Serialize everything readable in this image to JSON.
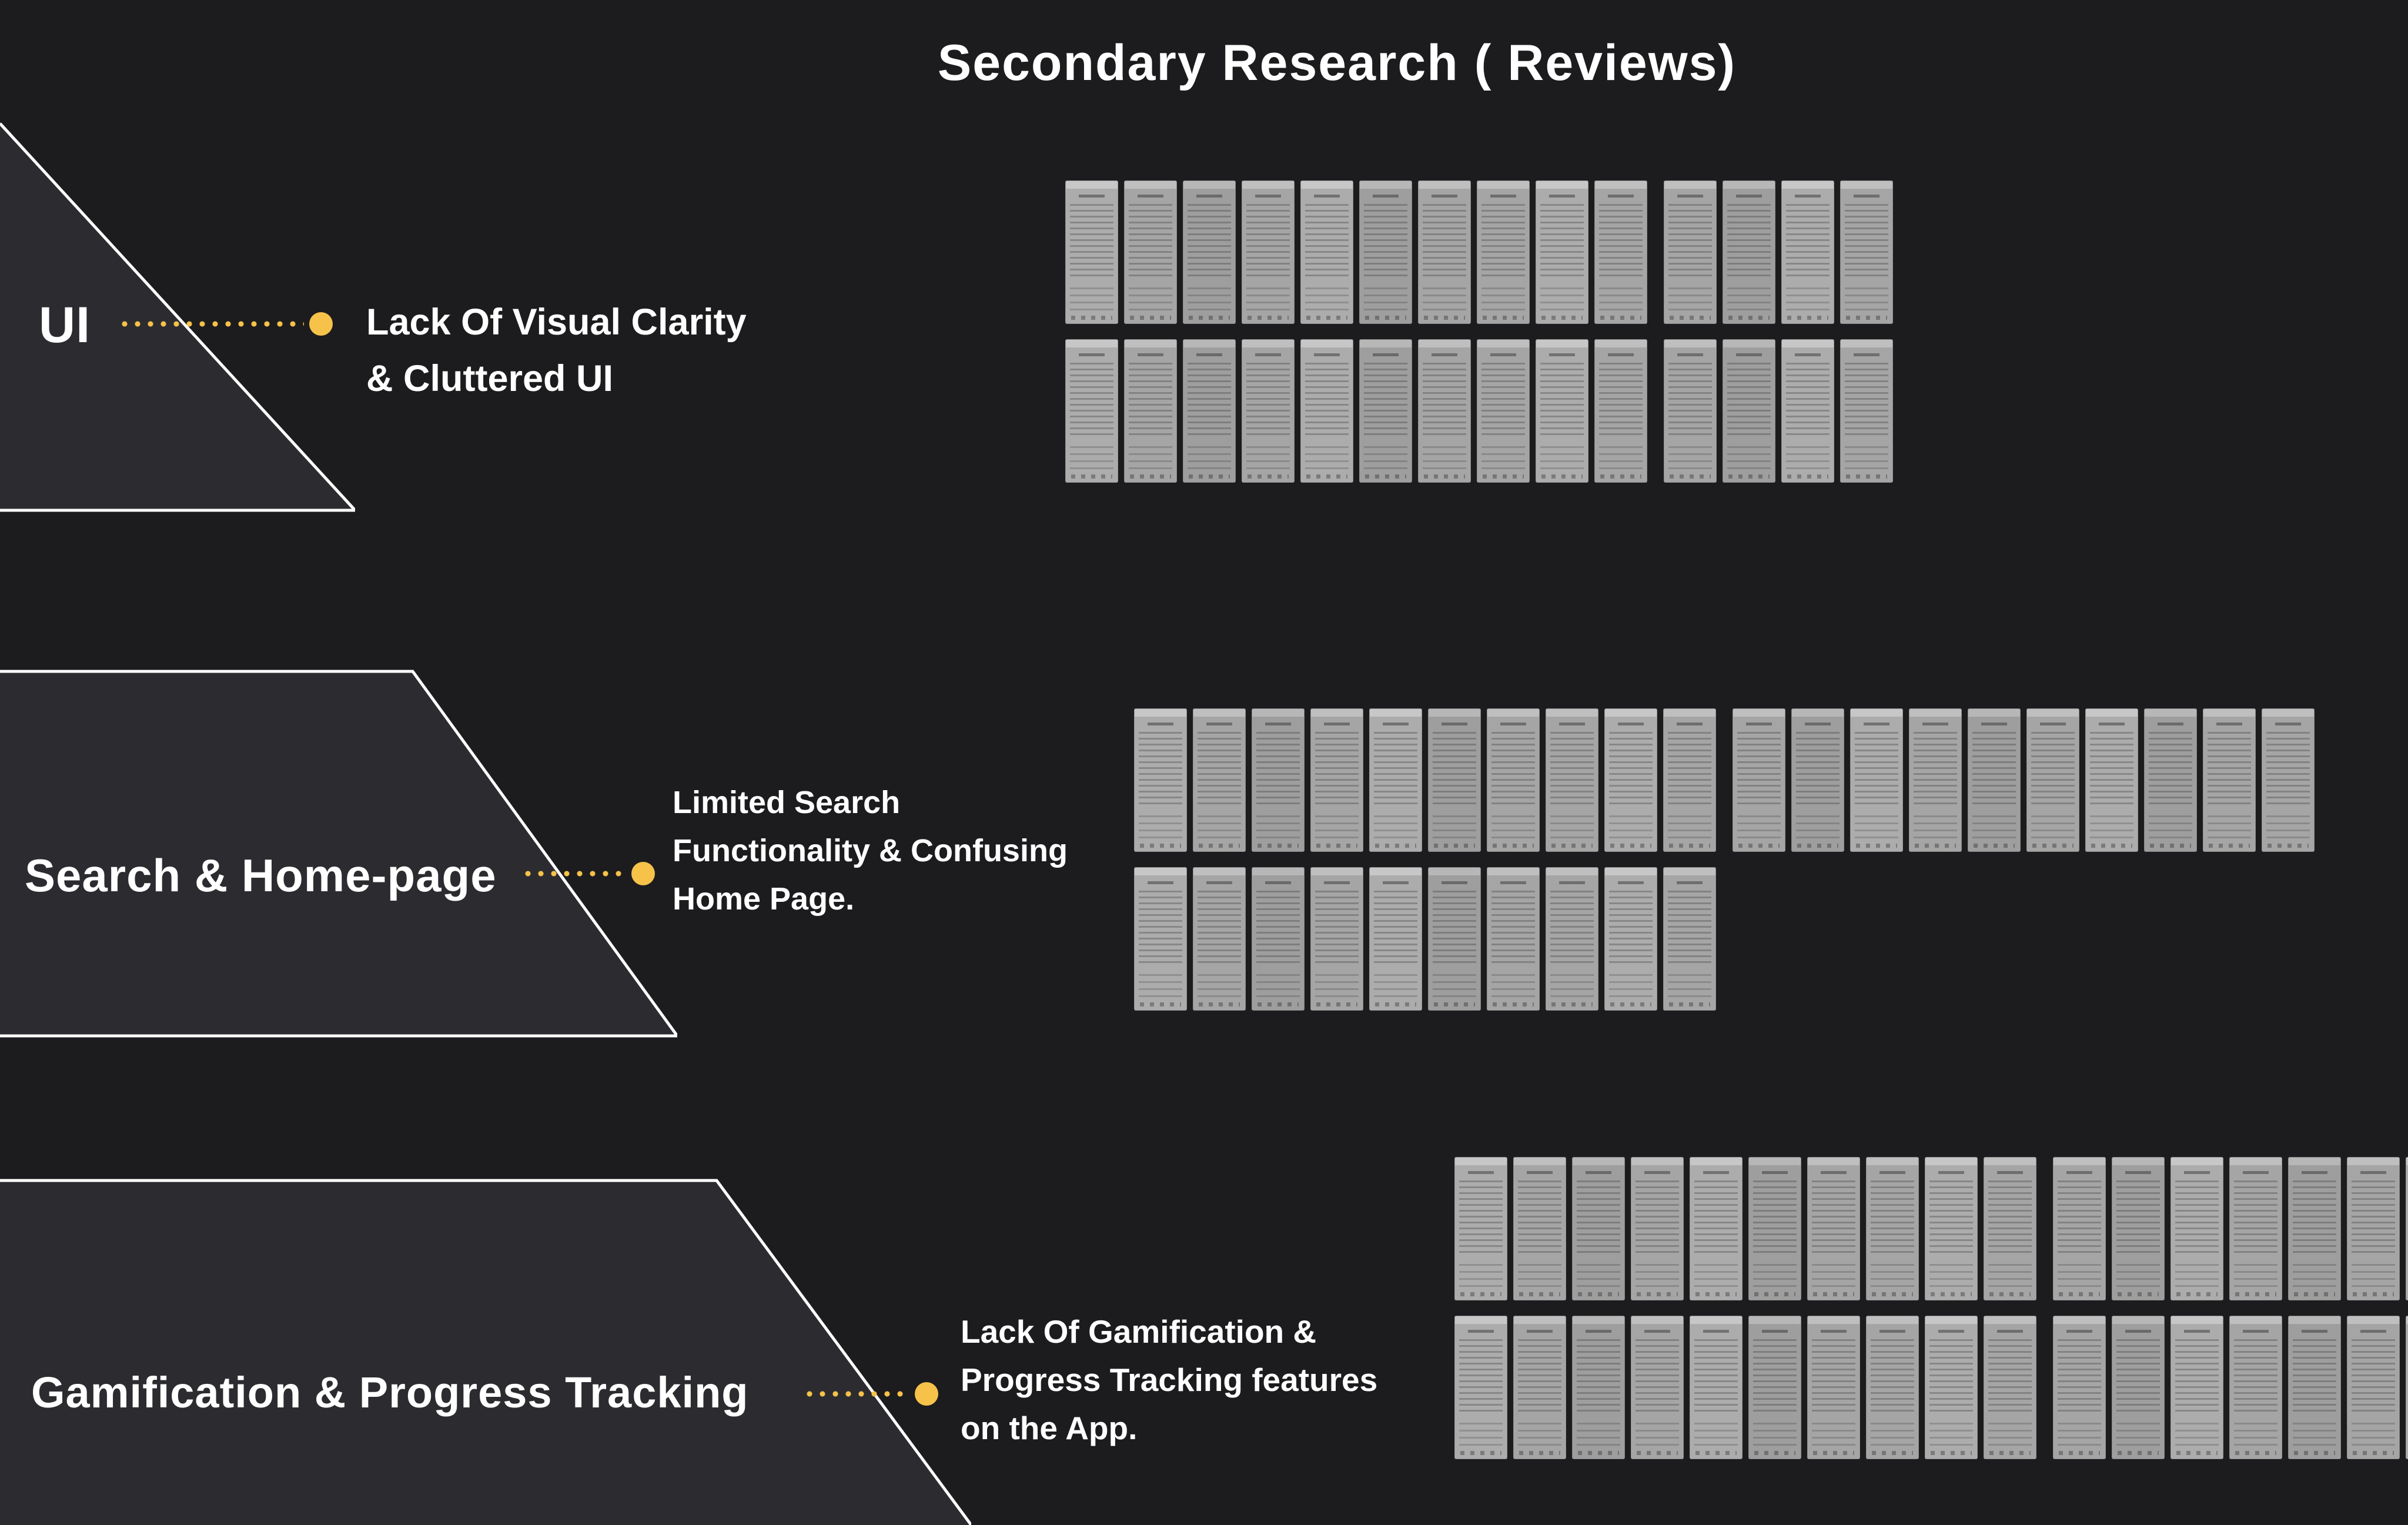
{
  "page": {
    "title": "Secondary Research ( Reviews)",
    "colors": {
      "background": "#1c1c1e",
      "panel": "#2c2c30",
      "accent": "#f6c24a",
      "text": "#ffffff",
      "thumbnail": "#a5a5a5"
    }
  },
  "sections": {
    "ui": {
      "label": "UI",
      "annotation": "Lack Of Visual Clarity\n& Cluttered UI",
      "cluster": {
        "rows": [
          {
            "count": 14,
            "gap_after": 10
          },
          {
            "count": 14,
            "gap_after": 10
          }
        ]
      }
    },
    "search": {
      "label": "Search & Home-page",
      "annotation": "Limited Search\nFunctionality & Confusing\nHome Page.",
      "cluster": {
        "rows": [
          {
            "count": 20,
            "gap_after": 10
          },
          {
            "count": 10,
            "gap_after": 0
          }
        ]
      }
    },
    "gamification": {
      "label": "Gamification & Progress Tracking",
      "annotation": "Lack Of Gamification &\nProgress Tracking features\non the App.",
      "cluster": {
        "rows": [
          {
            "count": 17,
            "gap_after": 10
          },
          {
            "count": 17,
            "gap_after": 10
          }
        ]
      }
    }
  }
}
